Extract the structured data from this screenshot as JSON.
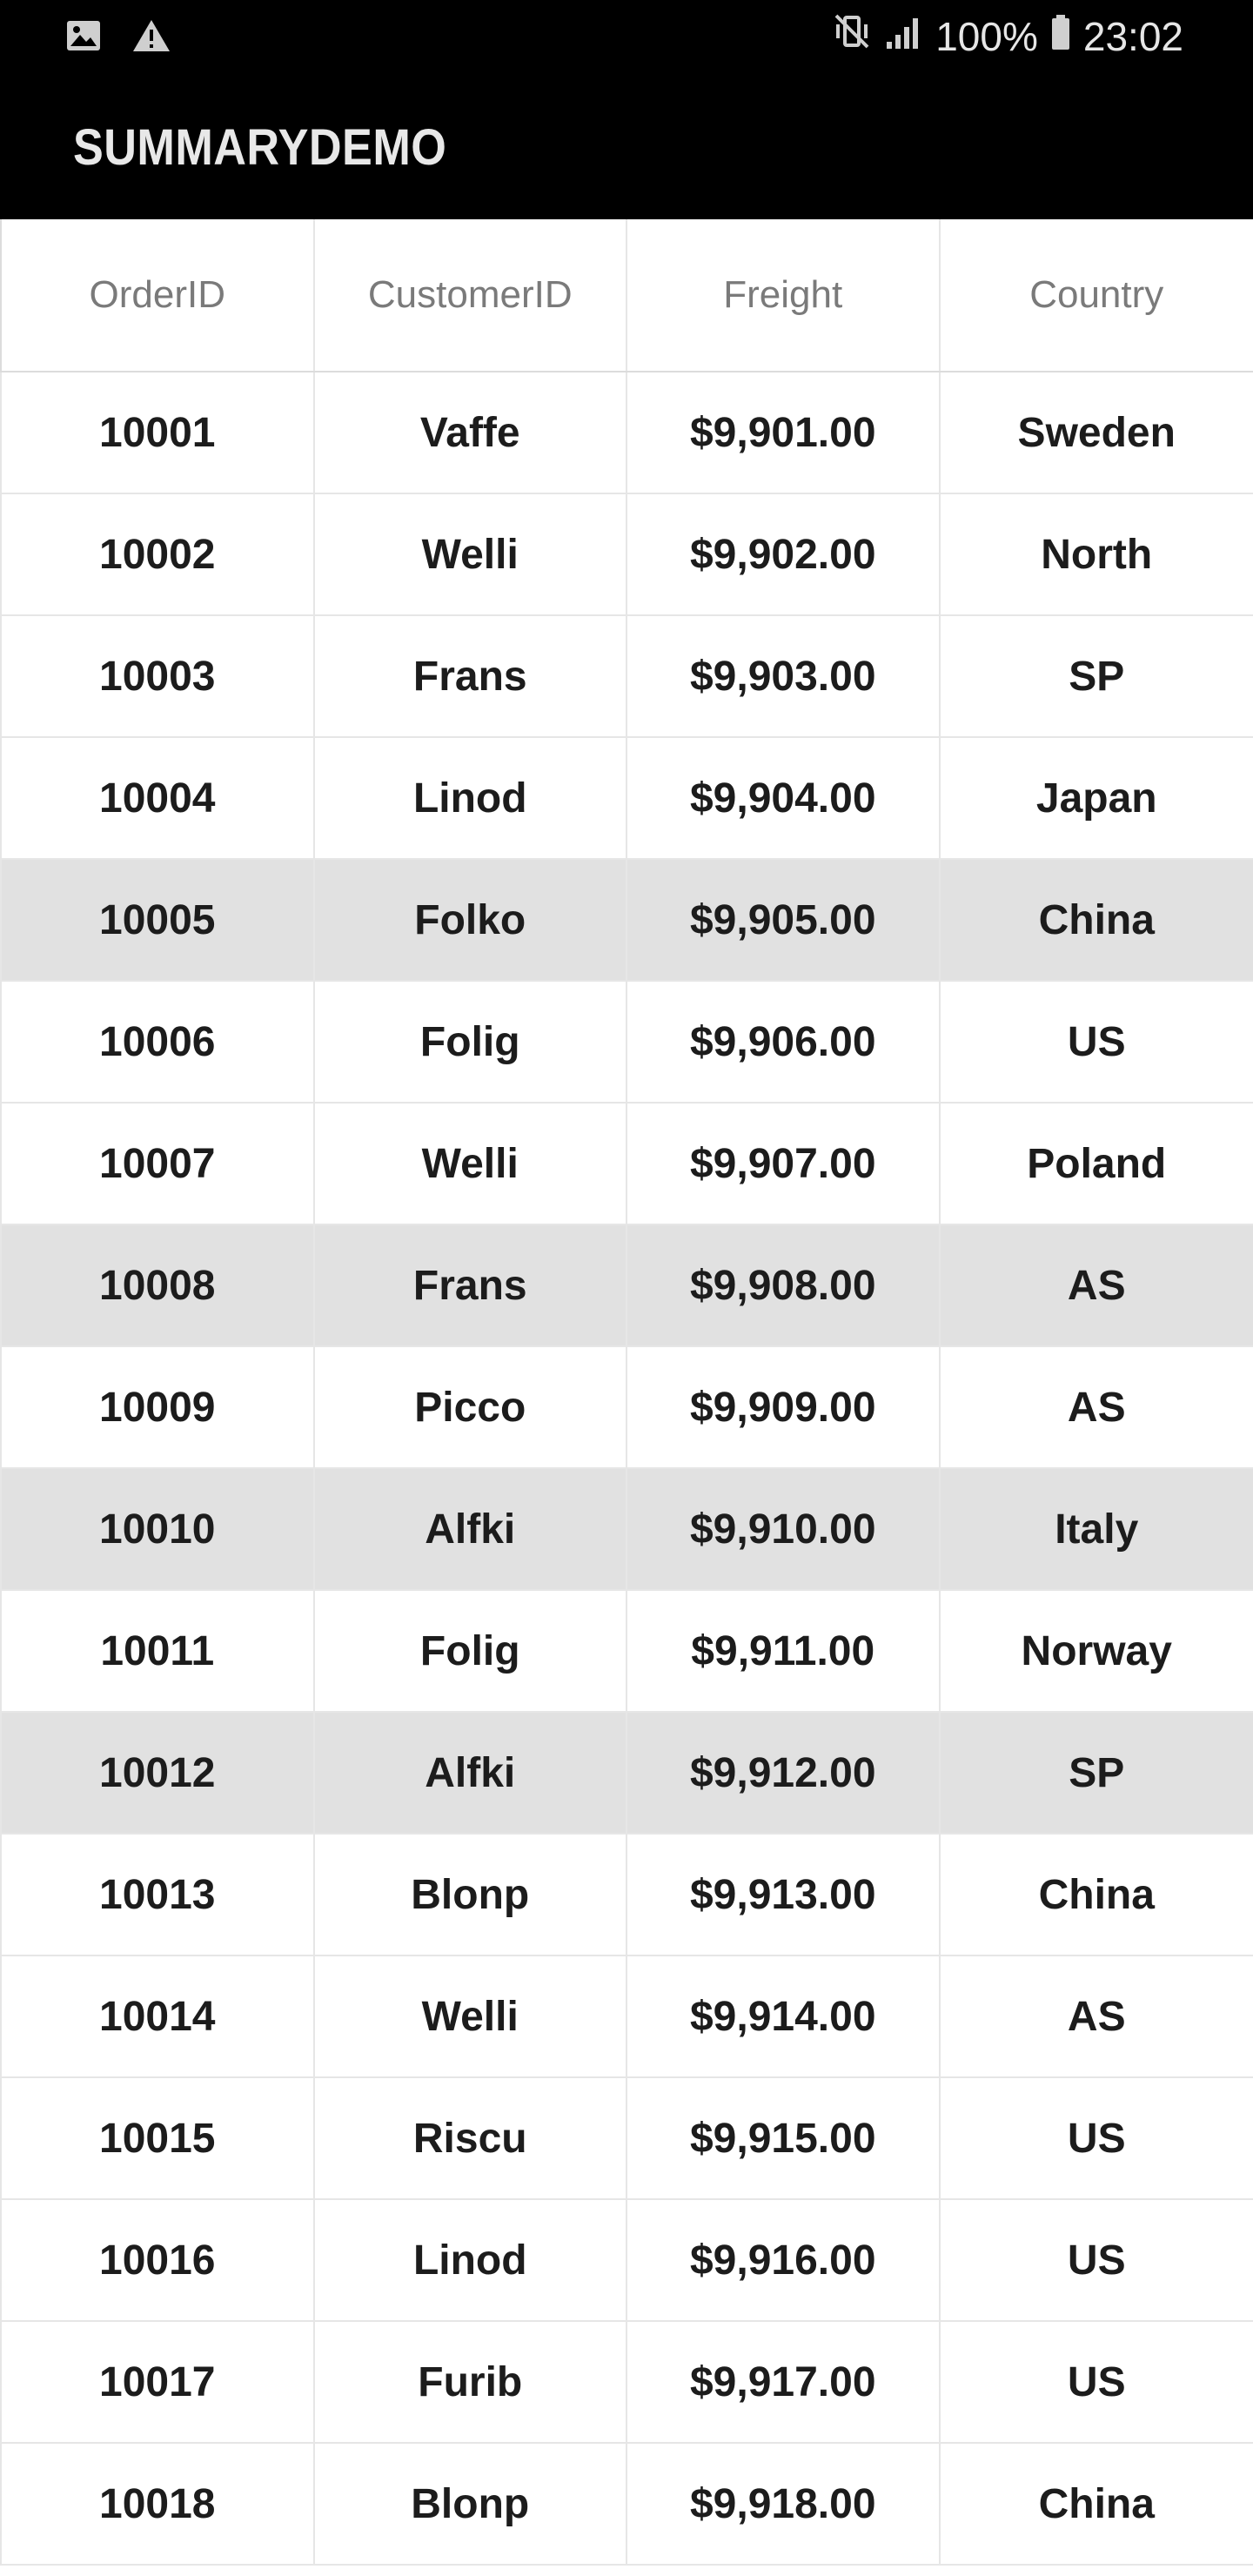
{
  "status_bar": {
    "left_icons": [
      "image-icon",
      "warning-icon"
    ],
    "right_icons": [
      "vibrate-mute-icon",
      "signal-icon",
      "battery-icon"
    ],
    "battery": "100%",
    "time": "23:02"
  },
  "app_bar": {
    "title": "SUMMARYDEMO",
    "background": "#000000"
  },
  "grid": {
    "columns": [
      "OrderID",
      "CustomerID",
      "Freight",
      "Country"
    ],
    "selected_row_color": "#e1e1e1",
    "rows": [
      {
        "order_id": "10001",
        "customer_id": "Vaffe",
        "freight": "$9,901.00",
        "country": "Sweden",
        "selected": false
      },
      {
        "order_id": "10002",
        "customer_id": "Welli",
        "freight": "$9,902.00",
        "country": "North",
        "selected": false
      },
      {
        "order_id": "10003",
        "customer_id": "Frans",
        "freight": "$9,903.00",
        "country": "SP",
        "selected": false
      },
      {
        "order_id": "10004",
        "customer_id": "Linod",
        "freight": "$9,904.00",
        "country": "Japan",
        "selected": false
      },
      {
        "order_id": "10005",
        "customer_id": "Folko",
        "freight": "$9,905.00",
        "country": "China",
        "selected": true
      },
      {
        "order_id": "10006",
        "customer_id": "Folig",
        "freight": "$9,906.00",
        "country": "US",
        "selected": false
      },
      {
        "order_id": "10007",
        "customer_id": "Welli",
        "freight": "$9,907.00",
        "country": "Poland",
        "selected": false
      },
      {
        "order_id": "10008",
        "customer_id": "Frans",
        "freight": "$9,908.00",
        "country": "AS",
        "selected": true
      },
      {
        "order_id": "10009",
        "customer_id": "Picco",
        "freight": "$9,909.00",
        "country": "AS",
        "selected": false
      },
      {
        "order_id": "10010",
        "customer_id": "Alfki",
        "freight": "$9,910.00",
        "country": "Italy",
        "selected": true
      },
      {
        "order_id": "10011",
        "customer_id": "Folig",
        "freight": "$9,911.00",
        "country": "Norway",
        "selected": false
      },
      {
        "order_id": "10012",
        "customer_id": "Alfki",
        "freight": "$9,912.00",
        "country": "SP",
        "selected": true
      },
      {
        "order_id": "10013",
        "customer_id": "Blonp",
        "freight": "$9,913.00",
        "country": "China",
        "selected": false
      },
      {
        "order_id": "10014",
        "customer_id": "Welli",
        "freight": "$9,914.00",
        "country": "AS",
        "selected": false
      },
      {
        "order_id": "10015",
        "customer_id": "Riscu",
        "freight": "$9,915.00",
        "country": "US",
        "selected": false
      },
      {
        "order_id": "10016",
        "customer_id": "Linod",
        "freight": "$9,916.00",
        "country": "US",
        "selected": false
      },
      {
        "order_id": "10017",
        "customer_id": "Furib",
        "freight": "$9,917.00",
        "country": "US",
        "selected": false
      },
      {
        "order_id": "10018",
        "customer_id": "Blonp",
        "freight": "$9,918.00",
        "country": "China",
        "selected": false
      }
    ]
  }
}
